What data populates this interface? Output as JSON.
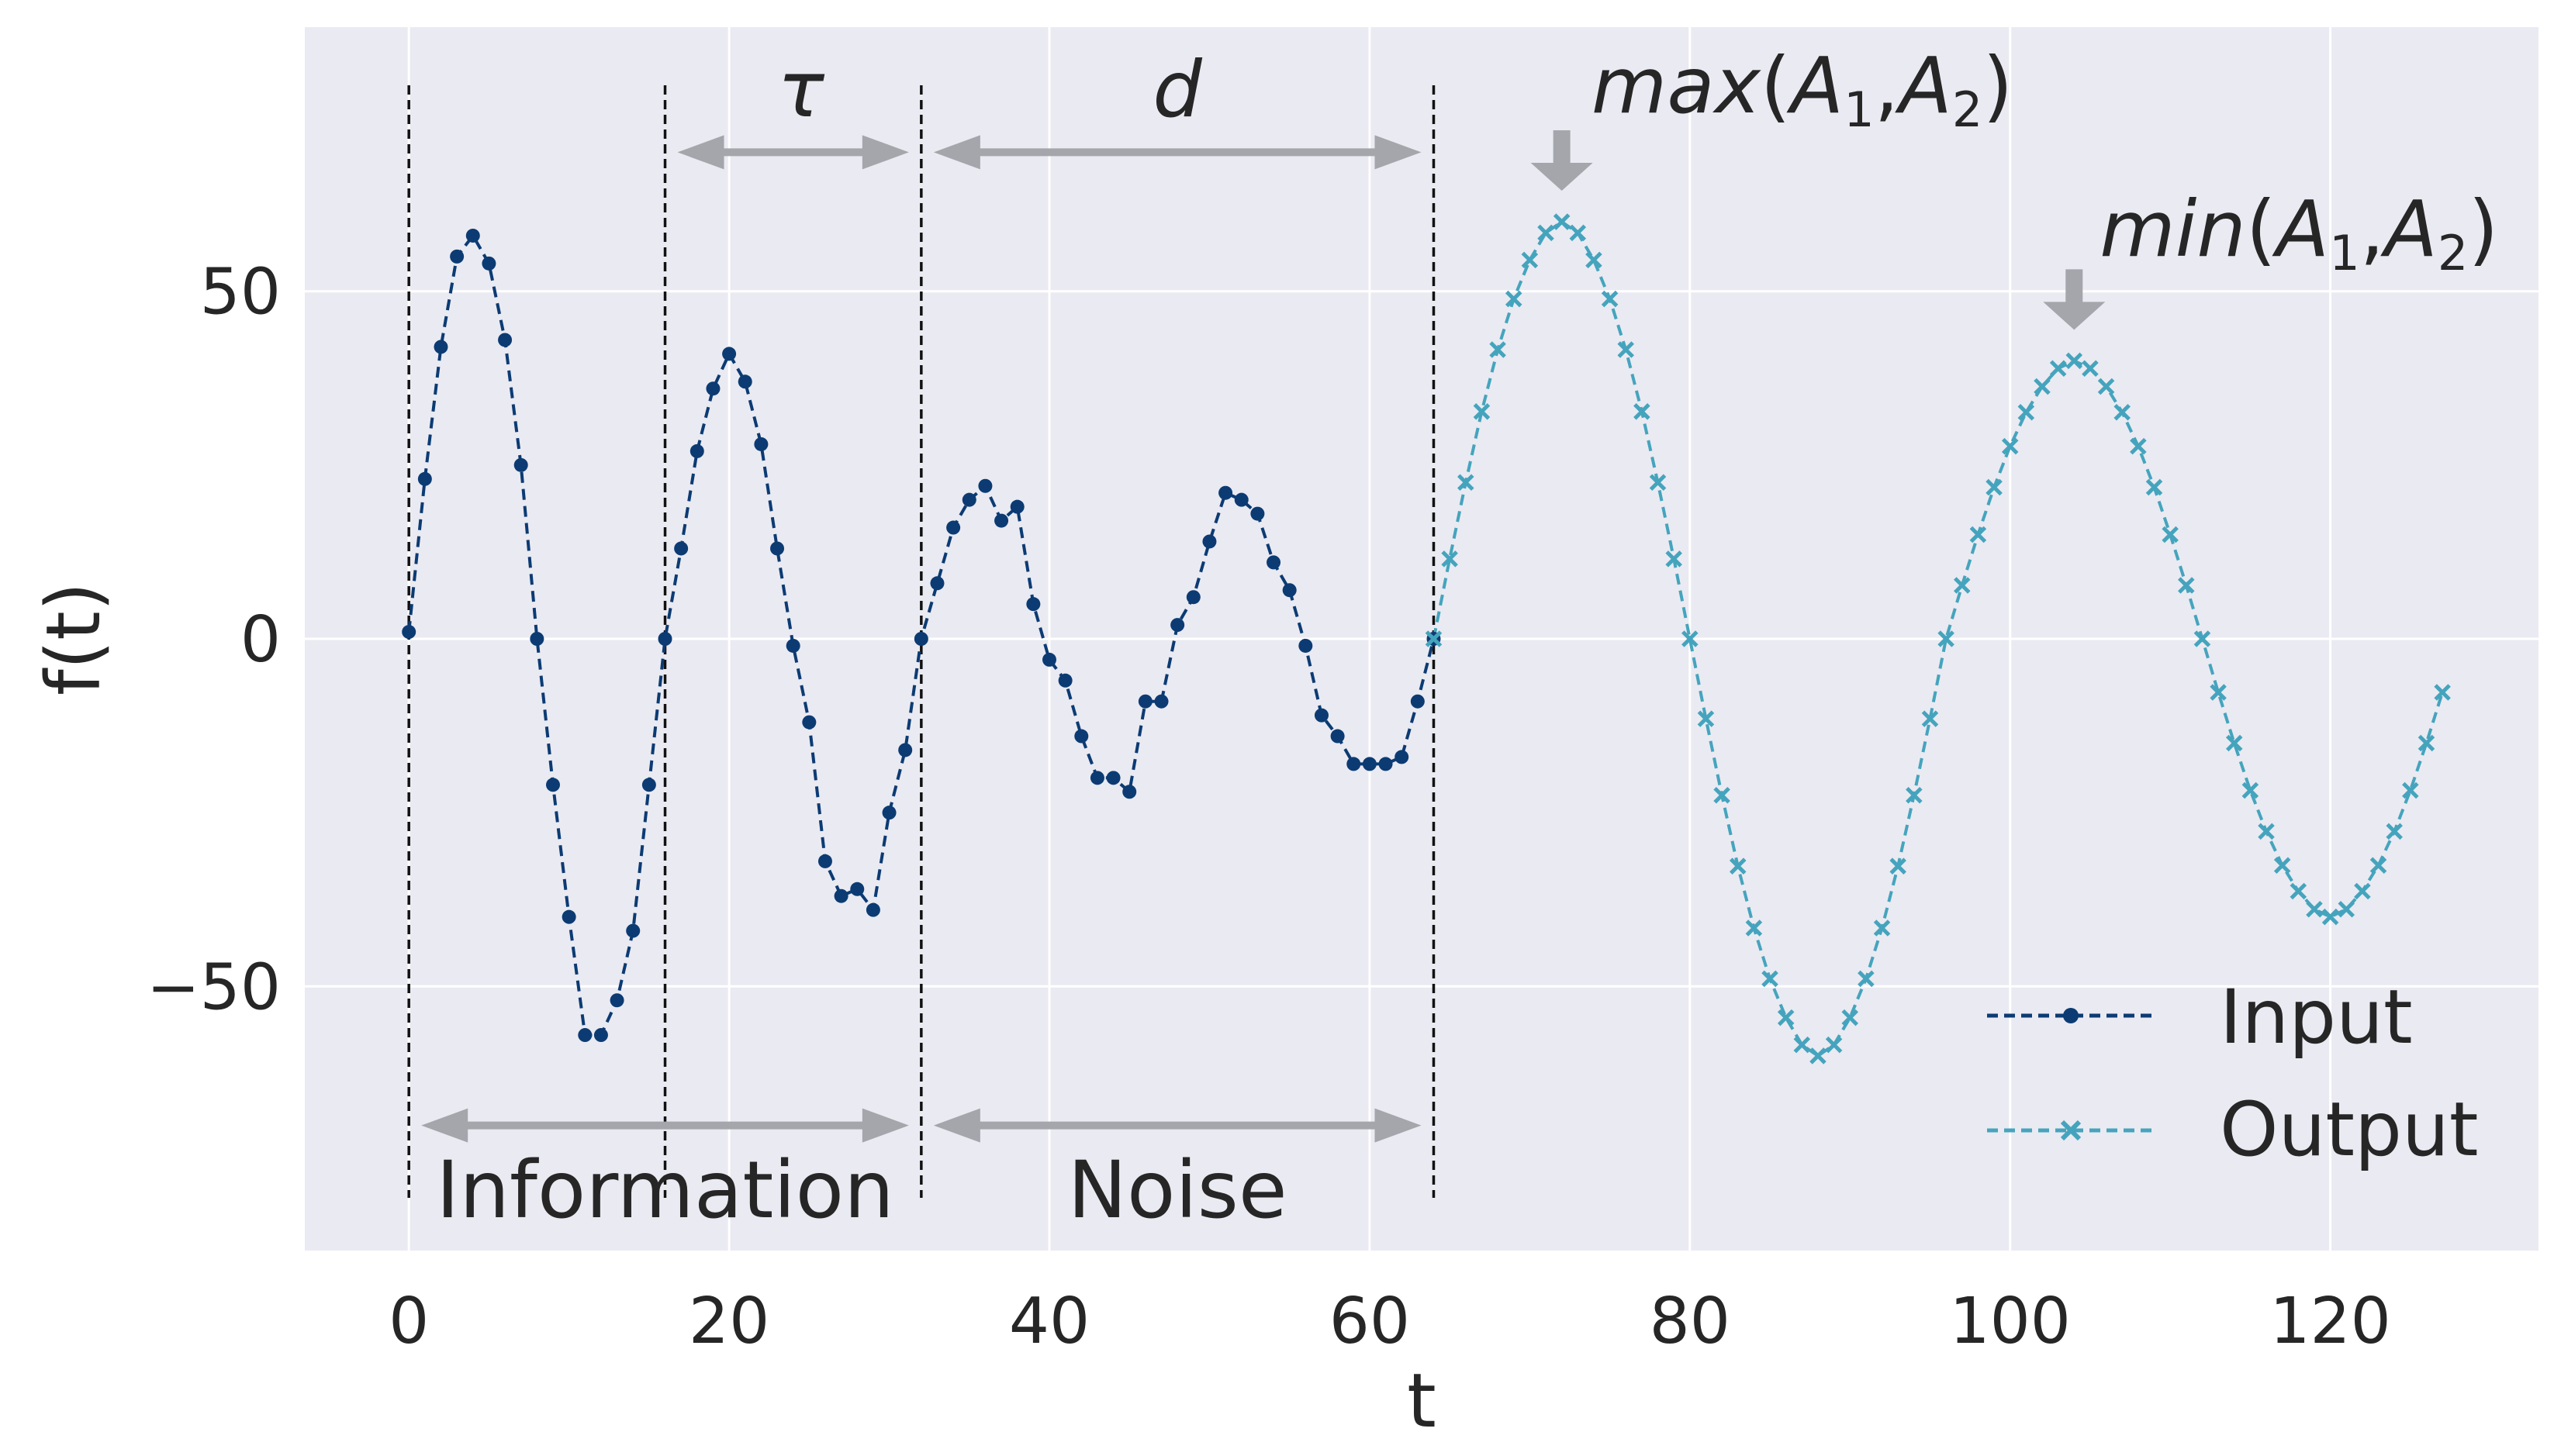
{
  "chart_data": {
    "type": "line",
    "title": "",
    "xlabel": "t",
    "ylabel": "f(t)",
    "xlim": [
      -6.5,
      133
    ],
    "ylim": [
      -88,
      88
    ],
    "xticks": [
      0,
      20,
      40,
      60,
      80,
      100,
      120
    ],
    "xtick_labels": [
      "0",
      "20",
      "40",
      "60",
      "80",
      "100",
      "120"
    ],
    "yticks": [
      -50,
      0,
      50
    ],
    "ytick_labels": [
      "−50",
      "0",
      "50"
    ],
    "grid": true,
    "legend_position": "lower-right",
    "colors": {
      "input": "#0c3b73",
      "output": "#45a4bd",
      "annotation": "#a4a6ab",
      "background": "#eaeaf2",
      "grid": "#ffffff"
    },
    "series": [
      {
        "name": "Input",
        "marker": "dot",
        "x": [
          0,
          1,
          2,
          3,
          4,
          5,
          6,
          7,
          8,
          9,
          10,
          11,
          12,
          13,
          14,
          15,
          16,
          17,
          18,
          19,
          20,
          21,
          22,
          23,
          24,
          25,
          26,
          27,
          28,
          29,
          30,
          31,
          32,
          33,
          34,
          35,
          36,
          37,
          38,
          39,
          40,
          41,
          42,
          43,
          44,
          45,
          46,
          47,
          48,
          49,
          50,
          51,
          52,
          53,
          54,
          55,
          56,
          57,
          58,
          59,
          60,
          61,
          62,
          63,
          64
        ],
        "values": [
          1,
          23,
          42,
          55,
          58,
          54,
          43,
          25,
          0,
          -21,
          -40,
          -57,
          -57,
          -52,
          -42,
          -21,
          0,
          13,
          27,
          36,
          41,
          37,
          28,
          13,
          -1,
          -12,
          -32,
          -37,
          -36,
          -39,
          -25,
          -16,
          0,
          8,
          16,
          20,
          22,
          17,
          19,
          5,
          -3,
          -6,
          -14,
          -20,
          -20,
          -22,
          -9,
          -9,
          2,
          6,
          14,
          21,
          20,
          18,
          11,
          7,
          -1,
          -11,
          -14,
          -18,
          -18,
          -18,
          -17,
          -9,
          0
        ]
      },
      {
        "name": "Output",
        "marker": "x",
        "x": [
          64,
          65,
          66,
          67,
          68,
          69,
          70,
          71,
          72,
          73,
          74,
          75,
          76,
          77,
          78,
          79,
          80,
          81,
          82,
          83,
          84,
          85,
          86,
          87,
          88,
          89,
          90,
          91,
          92,
          93,
          94,
          95,
          96,
          97,
          98,
          99,
          100,
          101,
          102,
          103,
          104,
          105,
          106,
          107,
          108,
          109,
          110,
          111,
          112,
          113,
          114,
          115,
          116,
          117,
          118,
          119,
          120,
          121,
          122,
          123,
          124,
          125,
          126,
          127
        ],
        "values": [
          0,
          11.5,
          22.5,
          32.7,
          41.6,
          48.9,
          54.5,
          58.4,
          60,
          58.4,
          54.5,
          48.9,
          41.6,
          32.7,
          22.5,
          11.5,
          0,
          -11.5,
          -22.5,
          -32.7,
          -41.6,
          -48.9,
          -54.5,
          -58.4,
          -60,
          -58.4,
          -54.5,
          -48.9,
          -41.6,
          -32.7,
          -22.5,
          -11.5,
          0,
          7.7,
          15,
          21.8,
          27.7,
          32.6,
          36.3,
          38.9,
          40,
          38.9,
          36.3,
          32.6,
          27.7,
          21.8,
          15,
          7.7,
          0,
          -7.7,
          -15,
          -21.8,
          -27.7,
          -32.6,
          -36.3,
          -38.9,
          -40,
          -38.9,
          -36.3,
          -32.6,
          -27.7,
          -21.8,
          -15,
          -7.7
        ]
      }
    ],
    "vertical_lines_x": [
      0,
      16,
      32,
      64
    ],
    "annotations": {
      "tau": {
        "label": "τ",
        "from_x": 16,
        "to_x": 32,
        "arrow_y": 70
      },
      "d": {
        "label": "d",
        "from_x": 32,
        "to_x": 64,
        "arrow_y": 70
      },
      "information": {
        "label": "Information",
        "from_x": 0,
        "to_x": 32,
        "arrow_y": -70
      },
      "noise": {
        "label": "Noise",
        "from_x": 32,
        "to_x": 64,
        "arrow_y": -70
      },
      "max_peak": {
        "func": "max",
        "arg1": "A",
        "sub1": "1",
        "arg2": "A",
        "sub2": "2",
        "x": 72,
        "y": 60
      },
      "min_peak": {
        "func": "min",
        "arg1": "A",
        "sub1": "1",
        "arg2": "A",
        "sub2": "2",
        "x": 104,
        "y": 40
      }
    }
  }
}
